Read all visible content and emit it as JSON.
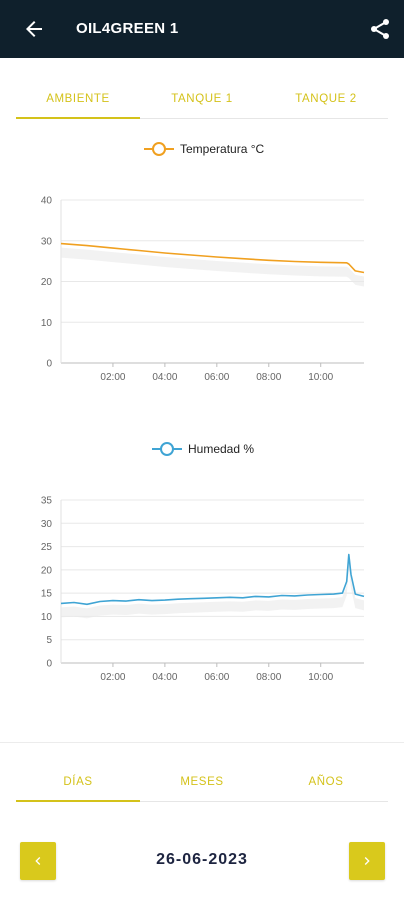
{
  "header": {
    "title": "OIL4GREEN 1",
    "back_icon": "arrow-left-icon",
    "share_icon": "share-icon"
  },
  "top_tabs": [
    {
      "label": "AMBIENTE",
      "selected": true
    },
    {
      "label": "TANQUE 1",
      "selected": false
    },
    {
      "label": "TANQUE 2",
      "selected": false
    }
  ],
  "range_tabs": [
    {
      "label": "DÍAS",
      "selected": true
    },
    {
      "label": "MESES",
      "selected": false
    },
    {
      "label": "AÑOS",
      "selected": false
    }
  ],
  "date_nav": {
    "date": "26-06-2023",
    "prev_icon": "chevron-left-icon",
    "next_icon": "chevron-right-icon"
  },
  "colors": {
    "appbar": "#0f202c",
    "accent": "#d4c21a",
    "button": "#d9c91c",
    "temperature": "#f0a020",
    "humidity": "#3fa4d4"
  },
  "chart_data": [
    {
      "type": "line",
      "legend": "Temperatura °C",
      "x_ticks": [
        "02:00",
        "04:00",
        "06:00",
        "08:00",
        "10:00"
      ],
      "ylim": [
        0,
        40
      ],
      "y_ticks": [
        0,
        10,
        20,
        30,
        40
      ],
      "grid": true,
      "series": [
        {
          "name": "Temperatura °C",
          "x": [
            "00:00",
            "01:00",
            "02:00",
            "03:00",
            "04:00",
            "05:00",
            "06:00",
            "07:00",
            "08:00",
            "09:00",
            "10:00",
            "11:00",
            "11:05",
            "11:20",
            "11:40"
          ],
          "y": [
            29.3,
            28.8,
            28.2,
            27.6,
            27.0,
            26.5,
            26.0,
            25.6,
            25.2,
            24.9,
            24.7,
            24.6,
            24.3,
            22.6,
            22.2
          ]
        }
      ]
    },
    {
      "type": "line",
      "legend": "Humedad %",
      "x_ticks": [
        "02:00",
        "04:00",
        "06:00",
        "08:00",
        "10:00"
      ],
      "ylim": [
        0,
        35
      ],
      "y_ticks": [
        0,
        5,
        10,
        15,
        20,
        25,
        30,
        35
      ],
      "grid": true,
      "series": [
        {
          "name": "Humedad %",
          "x": [
            "00:00",
            "00:30",
            "01:00",
            "01:30",
            "02:00",
            "02:30",
            "03:00",
            "03:30",
            "04:00",
            "04:30",
            "05:00",
            "05:30",
            "06:00",
            "06:30",
            "07:00",
            "07:30",
            "08:00",
            "08:30",
            "09:00",
            "09:30",
            "10:00",
            "10:30",
            "10:50",
            "11:00",
            "11:05",
            "11:10",
            "11:20",
            "11:40"
          ],
          "y": [
            12.8,
            13.0,
            12.6,
            13.2,
            13.4,
            13.3,
            13.6,
            13.4,
            13.5,
            13.7,
            13.8,
            13.9,
            14.0,
            14.1,
            14.0,
            14.3,
            14.2,
            14.5,
            14.4,
            14.6,
            14.7,
            14.8,
            15.0,
            17.5,
            23.3,
            19.0,
            14.8,
            14.3
          ]
        }
      ]
    }
  ]
}
